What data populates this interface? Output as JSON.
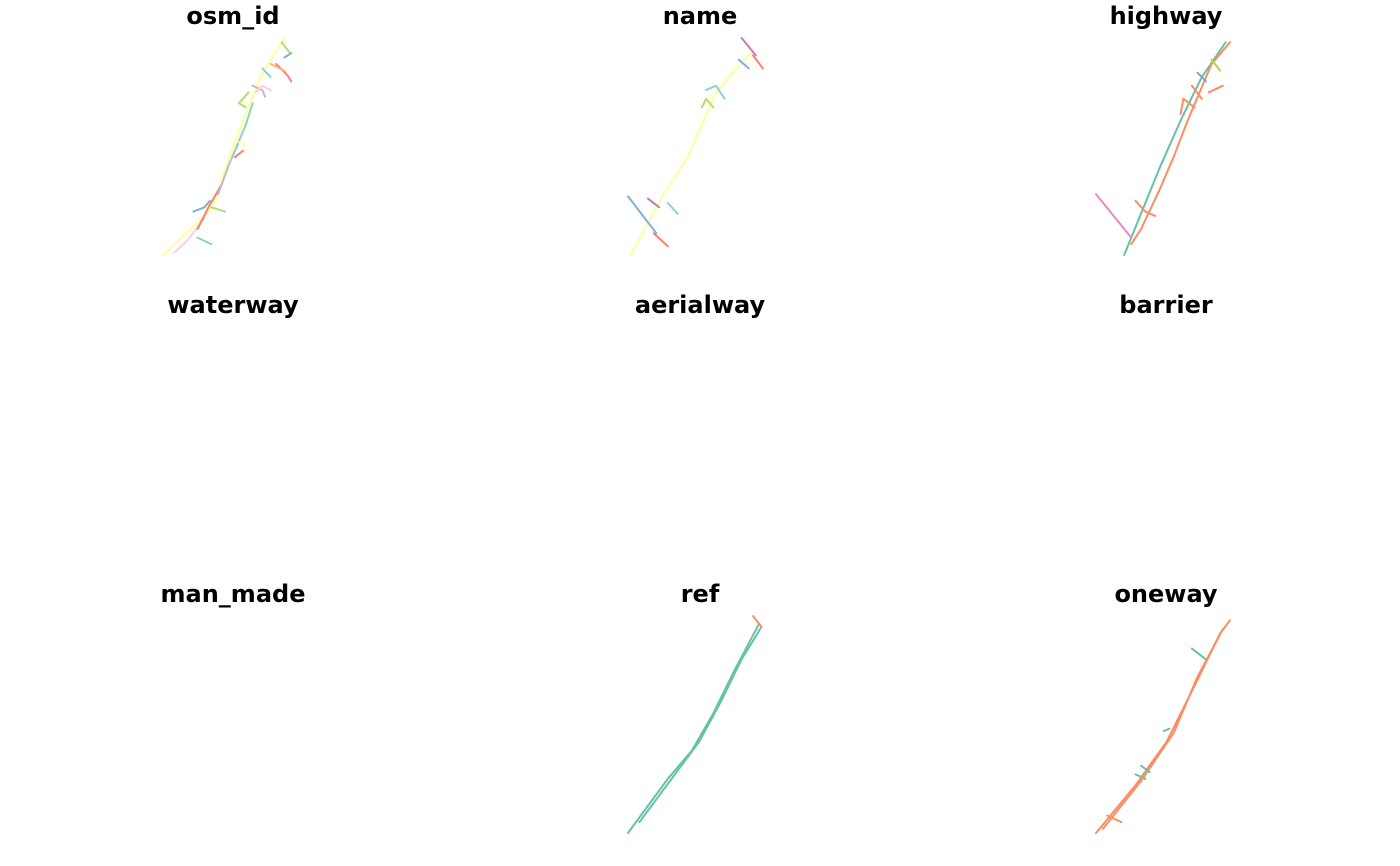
{
  "chart_data": {
    "type": "small-multiples-map",
    "grid": {
      "rows": 3,
      "cols": 3
    },
    "panels": [
      {
        "title": "osm_id",
        "lines": [
          {
            "color": "#ffff99",
            "pts": [
              [
                0,
                0
              ],
              [
                0.32,
                0.19
              ],
              [
                0.38,
                0.25
              ],
              [
                0.45,
                0.4
              ],
              [
                0.58,
                0.62
              ],
              [
                0.72,
                0.84
              ],
              [
                0.88,
                1
              ]
            ]
          },
          {
            "color": "#fccde5",
            "pts": [
              [
                0.08,
                0.01
              ],
              [
                0.18,
                0.07
              ],
              [
                0.3,
                0.17
              ]
            ]
          },
          {
            "color": "#fb8072",
            "pts": [
              [
                0.25,
                0.12
              ],
              [
                0.33,
                0.22
              ],
              [
                0.42,
                0.32
              ]
            ]
          },
          {
            "color": "#bebada",
            "pts": [
              [
                0.4,
                0.28
              ],
              [
                0.48,
                0.42
              ],
              [
                0.55,
                0.52
              ]
            ]
          },
          {
            "color": "#8dd3c7",
            "pts": [
              [
                0.5,
                0.45
              ],
              [
                0.6,
                0.6
              ],
              [
                0.65,
                0.7
              ]
            ]
          },
          {
            "color": "#80b1d3",
            "pts": [
              [
                0.22,
                0.2
              ],
              [
                0.3,
                0.22
              ],
              [
                0.34,
                0.25
              ]
            ]
          },
          {
            "color": "#b3de69",
            "pts": [
              [
                0.35,
                0.22
              ],
              [
                0.45,
                0.2
              ]
            ]
          },
          {
            "color": "#8dd3c7",
            "pts": [
              [
                0.25,
                0.08
              ],
              [
                0.35,
                0.05
              ]
            ]
          },
          {
            "color": "#ffffb3",
            "pts": [
              [
                0.55,
                0.52
              ],
              [
                0.62,
                0.5
              ]
            ]
          },
          {
            "color": "#fb8072",
            "pts": [
              [
                0.52,
                0.45
              ],
              [
                0.58,
                0.48
              ]
            ]
          },
          {
            "color": "#b3de69",
            "pts": [
              [
                0.6,
                0.68
              ],
              [
                0.55,
                0.7
              ],
              [
                0.58,
                0.72
              ],
              [
                0.62,
                0.75
              ]
            ]
          },
          {
            "color": "#bebada",
            "pts": [
              [
                0.65,
                0.78
              ],
              [
                0.72,
                0.76
              ],
              [
                0.74,
                0.73
              ]
            ]
          },
          {
            "color": "#fccde5",
            "pts": [
              [
                0.67,
                0.75
              ],
              [
                0.72,
                0.78
              ],
              [
                0.78,
                0.76
              ]
            ]
          },
          {
            "color": "#8dd3c7",
            "pts": [
              [
                0.72,
                0.86
              ],
              [
                0.78,
                0.82
              ]
            ]
          },
          {
            "color": "#fb8072",
            "pts": [
              [
                0.82,
                0.88
              ],
              [
                0.9,
                0.83
              ],
              [
                0.93,
                0.8
              ]
            ]
          },
          {
            "color": "#fdb462",
            "pts": [
              [
                0.78,
                0.88
              ],
              [
                0.88,
                0.85
              ]
            ]
          },
          {
            "color": "#b3de69",
            "pts": [
              [
                0.86,
                0.98
              ],
              [
                0.92,
                0.93
              ]
            ]
          },
          {
            "color": "#80b1d3",
            "pts": [
              [
                0.88,
                0.91
              ],
              [
                0.93,
                0.93
              ]
            ]
          }
        ]
      },
      {
        "title": "name",
        "lines": [
          {
            "color": "#ffff99",
            "pts": [
              [
                0.02,
                0
              ],
              [
                0.25,
                0.28
              ],
              [
                0.42,
                0.45
              ],
              [
                0.52,
                0.6
              ],
              [
                0.62,
                0.75
              ],
              [
                0.75,
                0.85
              ],
              [
                0.88,
                0.94
              ]
            ]
          },
          {
            "color": "#80b1d3",
            "pts": [
              [
                0,
                0.27
              ],
              [
                0.2,
                0.1
              ]
            ]
          },
          {
            "color": "#fb8072",
            "pts": [
              [
                0.18,
                0.1
              ],
              [
                0.28,
                0.04
              ]
            ]
          },
          {
            "color": "#bc80bd",
            "pts": [
              [
                0.14,
                0.26
              ],
              [
                0.22,
                0.22
              ]
            ]
          },
          {
            "color": "#8dd3c7",
            "pts": [
              [
                0.28,
                0.24
              ],
              [
                0.35,
                0.19
              ]
            ]
          },
          {
            "color": "#b3de69",
            "pts": [
              [
                0.52,
                0.68
              ],
              [
                0.55,
                0.72
              ],
              [
                0.6,
                0.68
              ]
            ]
          },
          {
            "color": "#8dd3c7",
            "pts": [
              [
                0.55,
                0.76
              ],
              [
                0.62,
                0.78
              ],
              [
                0.68,
                0.72
              ]
            ]
          },
          {
            "color": "#fb8072",
            "pts": [
              [
                0.88,
                0.92
              ],
              [
                0.95,
                0.86
              ]
            ]
          },
          {
            "color": "#bc80bd",
            "pts": [
              [
                0.8,
                1
              ],
              [
                0.9,
                0.92
              ]
            ]
          },
          {
            "color": "#80b1d3",
            "pts": [
              [
                0.78,
                0.9
              ],
              [
                0.85,
                0.86
              ]
            ]
          }
        ]
      },
      {
        "title": "highway",
        "lines": [
          {
            "color": "#66c2a5",
            "pts": [
              [
                0.2,
                0
              ],
              [
                0.45,
                0.4
              ],
              [
                0.6,
                0.62
              ],
              [
                0.75,
                0.82
              ],
              [
                0.92,
                0.98
              ]
            ]
          },
          {
            "color": "#fc8d62",
            "pts": [
              [
                0.25,
                0.05
              ],
              [
                0.32,
                0.12
              ],
              [
                0.45,
                0.3
              ],
              [
                0.55,
                0.45
              ],
              [
                0.65,
                0.62
              ],
              [
                0.82,
                0.88
              ],
              [
                0.95,
                0.98
              ]
            ]
          },
          {
            "color": "#e78ac3",
            "pts": [
              [
                0,
                0.28
              ],
              [
                0.25,
                0.08
              ]
            ]
          },
          {
            "color": "#fc8d62",
            "pts": [
              [
                0.28,
                0.25
              ],
              [
                0.35,
                0.2
              ],
              [
                0.42,
                0.18
              ]
            ]
          },
          {
            "color": "#fc8d62",
            "pts": [
              [
                0.6,
                0.65
              ],
              [
                0.62,
                0.72
              ],
              [
                0.7,
                0.68
              ]
            ]
          },
          {
            "color": "#fc8d62",
            "pts": [
              [
                0.68,
                0.78
              ],
              [
                0.75,
                0.72
              ]
            ]
          },
          {
            "color": "#8da0cb",
            "pts": [
              [
                0.72,
                0.84
              ],
              [
                0.78,
                0.8
              ]
            ]
          },
          {
            "color": "#a6d854",
            "pts": [
              [
                0.82,
                0.9
              ],
              [
                0.88,
                0.85
              ]
            ]
          },
          {
            "color": "#fc8d62",
            "pts": [
              [
                0.8,
                0.75
              ],
              [
                0.9,
                0.78
              ]
            ]
          }
        ]
      },
      {
        "title": "waterway",
        "lines": []
      },
      {
        "title": "aerialway",
        "lines": []
      },
      {
        "title": "barrier",
        "lines": []
      },
      {
        "title": "man_made",
        "lines": []
      },
      {
        "title": "ref",
        "lines": [
          {
            "color": "#66c2a5",
            "pts": [
              [
                0,
                0
              ],
              [
                0.28,
                0.25
              ],
              [
                0.45,
                0.38
              ],
              [
                0.6,
                0.55
              ],
              [
                0.75,
                0.75
              ],
              [
                0.92,
                0.96
              ]
            ]
          },
          {
            "color": "#66c2a5",
            "pts": [
              [
                0.08,
                0.05
              ],
              [
                0.33,
                0.27
              ],
              [
                0.5,
                0.42
              ],
              [
                0.65,
                0.6
              ],
              [
                0.8,
                0.8
              ],
              [
                0.94,
                0.95
              ]
            ]
          },
          {
            "color": "#fc8d62",
            "pts": [
              [
                0.88,
                1
              ],
              [
                0.94,
                0.95
              ]
            ]
          }
        ]
      },
      {
        "title": "oneway",
        "lines": [
          {
            "color": "#fc8d62",
            "pts": [
              [
                0,
                0
              ],
              [
                0.28,
                0.22
              ],
              [
                0.5,
                0.42
              ],
              [
                0.7,
                0.68
              ],
              [
                0.88,
                0.92
              ],
              [
                0.95,
                0.98
              ]
            ]
          },
          {
            "color": "#fc8d62",
            "pts": [
              [
                0.05,
                0.02
              ],
              [
                0.32,
                0.24
              ],
              [
                0.55,
                0.46
              ],
              [
                0.72,
                0.72
              ],
              [
                0.9,
                0.94
              ]
            ]
          },
          {
            "color": "#66c2a5",
            "pts": [
              [
                0.68,
                0.85
              ],
              [
                0.78,
                0.8
              ]
            ]
          },
          {
            "color": "#66c2a5",
            "pts": [
              [
                0.48,
                0.47
              ],
              [
                0.52,
                0.48
              ]
            ]
          },
          {
            "color": "#66c2a5",
            "pts": [
              [
                0.28,
                0.27
              ],
              [
                0.35,
                0.25
              ]
            ]
          },
          {
            "color": "#66c2a5",
            "pts": [
              [
                0.32,
                0.31
              ],
              [
                0.38,
                0.28
              ]
            ]
          },
          {
            "color": "#fc8d62",
            "pts": [
              [
                0.08,
                0.08
              ],
              [
                0.18,
                0.05
              ]
            ]
          }
        ]
      }
    ]
  }
}
